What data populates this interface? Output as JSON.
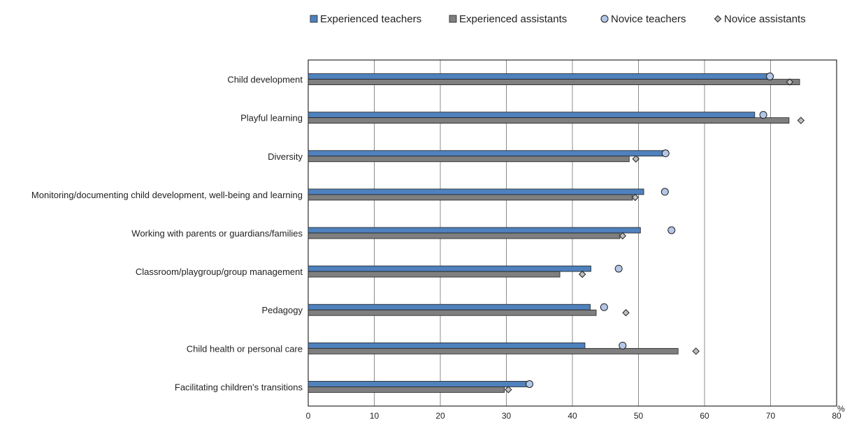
{
  "chart_data": {
    "type": "bar",
    "orientation": "horizontal",
    "categories": [
      "Child development",
      "Playful learning",
      "Diversity",
      "Monitoring/documenting child development, well-being and learning",
      "Working with parents or guardians/families",
      "Classroom/playgroup/group management",
      "Pedagogy",
      "Child health or personal care",
      "Facilitating children's transitions"
    ],
    "series": [
      {
        "name": "Experienced teachers",
        "mark": "bar",
        "color": "#4f81bd",
        "values": [
          69.8,
          67.6,
          54.3,
          50.8,
          50.3,
          42.8,
          42.7,
          41.9,
          33.3
        ]
      },
      {
        "name": "Experienced assistants",
        "mark": "bar",
        "color": "#7f7f7f",
        "values": [
          74.4,
          72.8,
          48.6,
          49.1,
          47.2,
          38.1,
          43.6,
          56.0,
          29.7
        ]
      },
      {
        "name": "Novice teachers",
        "mark": "circle",
        "color": "#b4c7e7",
        "values": [
          69.9,
          68.9,
          54.1,
          54.0,
          55.0,
          47.0,
          44.8,
          47.6,
          33.5
        ]
      },
      {
        "name": "Novice assistants",
        "mark": "diamond",
        "color": "#bfbfbf",
        "values": [
          72.9,
          74.6,
          49.6,
          49.5,
          47.6,
          41.5,
          48.1,
          58.7,
          30.3
        ]
      }
    ],
    "xlim": [
      0,
      80
    ],
    "x_ticks": [
      "0",
      "10",
      "20",
      "30",
      "40",
      "50",
      "60",
      "70",
      "80"
    ],
    "unit": "%",
    "grid": "vertical",
    "legend": "top"
  }
}
